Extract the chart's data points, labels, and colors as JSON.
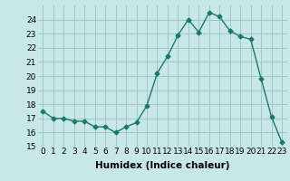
{
  "x": [
    0,
    1,
    2,
    3,
    4,
    5,
    6,
    7,
    8,
    9,
    10,
    11,
    12,
    13,
    14,
    15,
    16,
    17,
    18,
    19,
    20,
    21,
    22,
    23
  ],
  "y": [
    17.5,
    17.0,
    17.0,
    16.8,
    16.8,
    16.4,
    16.4,
    16.0,
    16.4,
    16.7,
    17.9,
    20.2,
    21.4,
    22.9,
    24.0,
    23.1,
    24.5,
    24.2,
    23.2,
    22.8,
    22.6,
    19.8,
    17.1,
    15.3
  ],
  "line_color": "#1a7a6a",
  "marker": "D",
  "marker_size": 2.5,
  "bg_color": "#c8e8e8",
  "grid_color": "#a0c8c8",
  "xlabel": "Humidex (Indice chaleur)",
  "xlim": [
    -0.5,
    23.5
  ],
  "ylim": [
    15,
    25
  ],
  "yticks": [
    15,
    16,
    17,
    18,
    19,
    20,
    21,
    22,
    23,
    24
  ],
  "xticks": [
    0,
    1,
    2,
    3,
    4,
    5,
    6,
    7,
    8,
    9,
    10,
    11,
    12,
    13,
    14,
    15,
    16,
    17,
    18,
    19,
    20,
    21,
    22,
    23
  ],
  "tick_fontsize": 6.5,
  "xlabel_fontsize": 7.5,
  "line_width": 1.0
}
